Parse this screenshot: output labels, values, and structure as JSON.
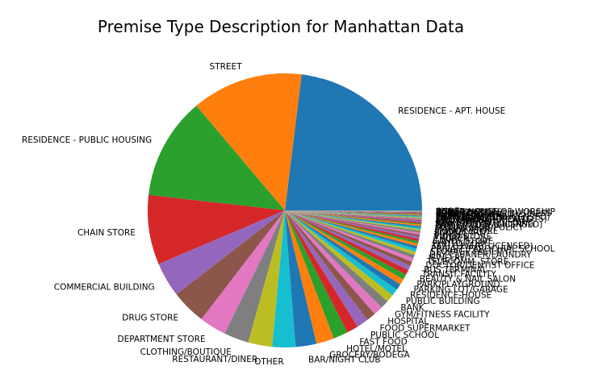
{
  "chart_data": {
    "type": "pie",
    "title": "Premise Type Description for Manhattan Data",
    "categories": [
      "RESIDENCE - APT. HOUSE",
      "STREET",
      "RESIDENCE - PUBLIC HOUSING",
      "CHAIN STORE",
      "COMMERCIAL BUILDING",
      "DRUG STORE",
      "DEPARTMENT STORE",
      "CLOTHING/BOUTIQUE",
      "RESTAURANT/DINER",
      "OTHER",
      "BAR/NIGHT CLUB",
      "GROCERY/BODEGA",
      "HOTEL/MOTEL",
      "FAST FOOD",
      "PUBLIC SCHOOL",
      "FOOD SUPERMARKET",
      "HOSPITAL",
      "GYM/FITNESS FACILITY",
      "BANK",
      "PUBLIC BUILDING",
      "RESIDENCE-HOUSE",
      "PARKING LOT/GARAGE",
      "PARK/PLAYGROUND",
      "BEAUTY & NAIL SALON",
      "TRANSIT FACILITY",
      "BUS TERMINAL",
      "DOCTOR/DENTIST OFFICE",
      "TELECOMM. STORE",
      "JEWELRY",
      "DRY CLEANER/LAUNDRY",
      "STORAGE FACILITY",
      "PRIVATE/PAROCHIAL SCHOOL",
      "TAXI (LIVERY LICENSED)",
      "PHOTO/COPY",
      "CANDY STORE",
      "CHURCH",
      "VIDEO STORE",
      "TUNNEL",
      "BOOK/CARD",
      "LIQUOR STORE",
      "MARINA/PIER",
      "SOCIAL CLUB/POLICY",
      "BRIDGE",
      "TAXI (YELLOW LICENSED)",
      "ABANDONED BUILDING",
      "GAS STATION",
      "SYNAGOGUE",
      "FACTORY/WAREHOUSE",
      "OPEN AREAS (OPEN LOTS)",
      "LOAN COMPANY",
      "TAXI/LIVERY (UNLICENSED)",
      "CEMETERY",
      "MOSQUE",
      "BUS (NYC TRANSIT)",
      "BUS STOP",
      "CHECK CASHING BUSINESS",
      "BUS (OTHER)",
      "VARIETY STORE",
      "OTHER HOUSE OF WORSHIP",
      "SHOE"
    ],
    "values": [
      25.3,
      14.4,
      13.2,
      9.0,
      4.5,
      4.5,
      3.5,
      3.2,
      3.1,
      3.0,
      2.7,
      2.3,
      1.9,
      1.5,
      1.5,
      1.2,
      1.2,
      1.1,
      1.0,
      0.9,
      0.8,
      0.75,
      0.7,
      0.65,
      0.6,
      0.55,
      0.5,
      0.45,
      0.4,
      0.4,
      0.35,
      0.35,
      0.3,
      0.3,
      0.3,
      0.25,
      0.25,
      0.25,
      0.2,
      0.2,
      0.2,
      0.2,
      0.15,
      0.15,
      0.15,
      0.15,
      0.12,
      0.12,
      0.12,
      0.1,
      0.1,
      0.1,
      0.1,
      0.08,
      0.08,
      0.08,
      0.06,
      0.06,
      0.05,
      0.05
    ],
    "colors": [
      "#1f77b4",
      "#ff7f0e",
      "#2ca02c",
      "#d62728",
      "#9467bd",
      "#8c564b",
      "#e377c2",
      "#7f7f7f",
      "#bcbd22",
      "#17becf"
    ],
    "start_angle_deg": 0,
    "direction": "counterclockwise",
    "legend": "none"
  }
}
